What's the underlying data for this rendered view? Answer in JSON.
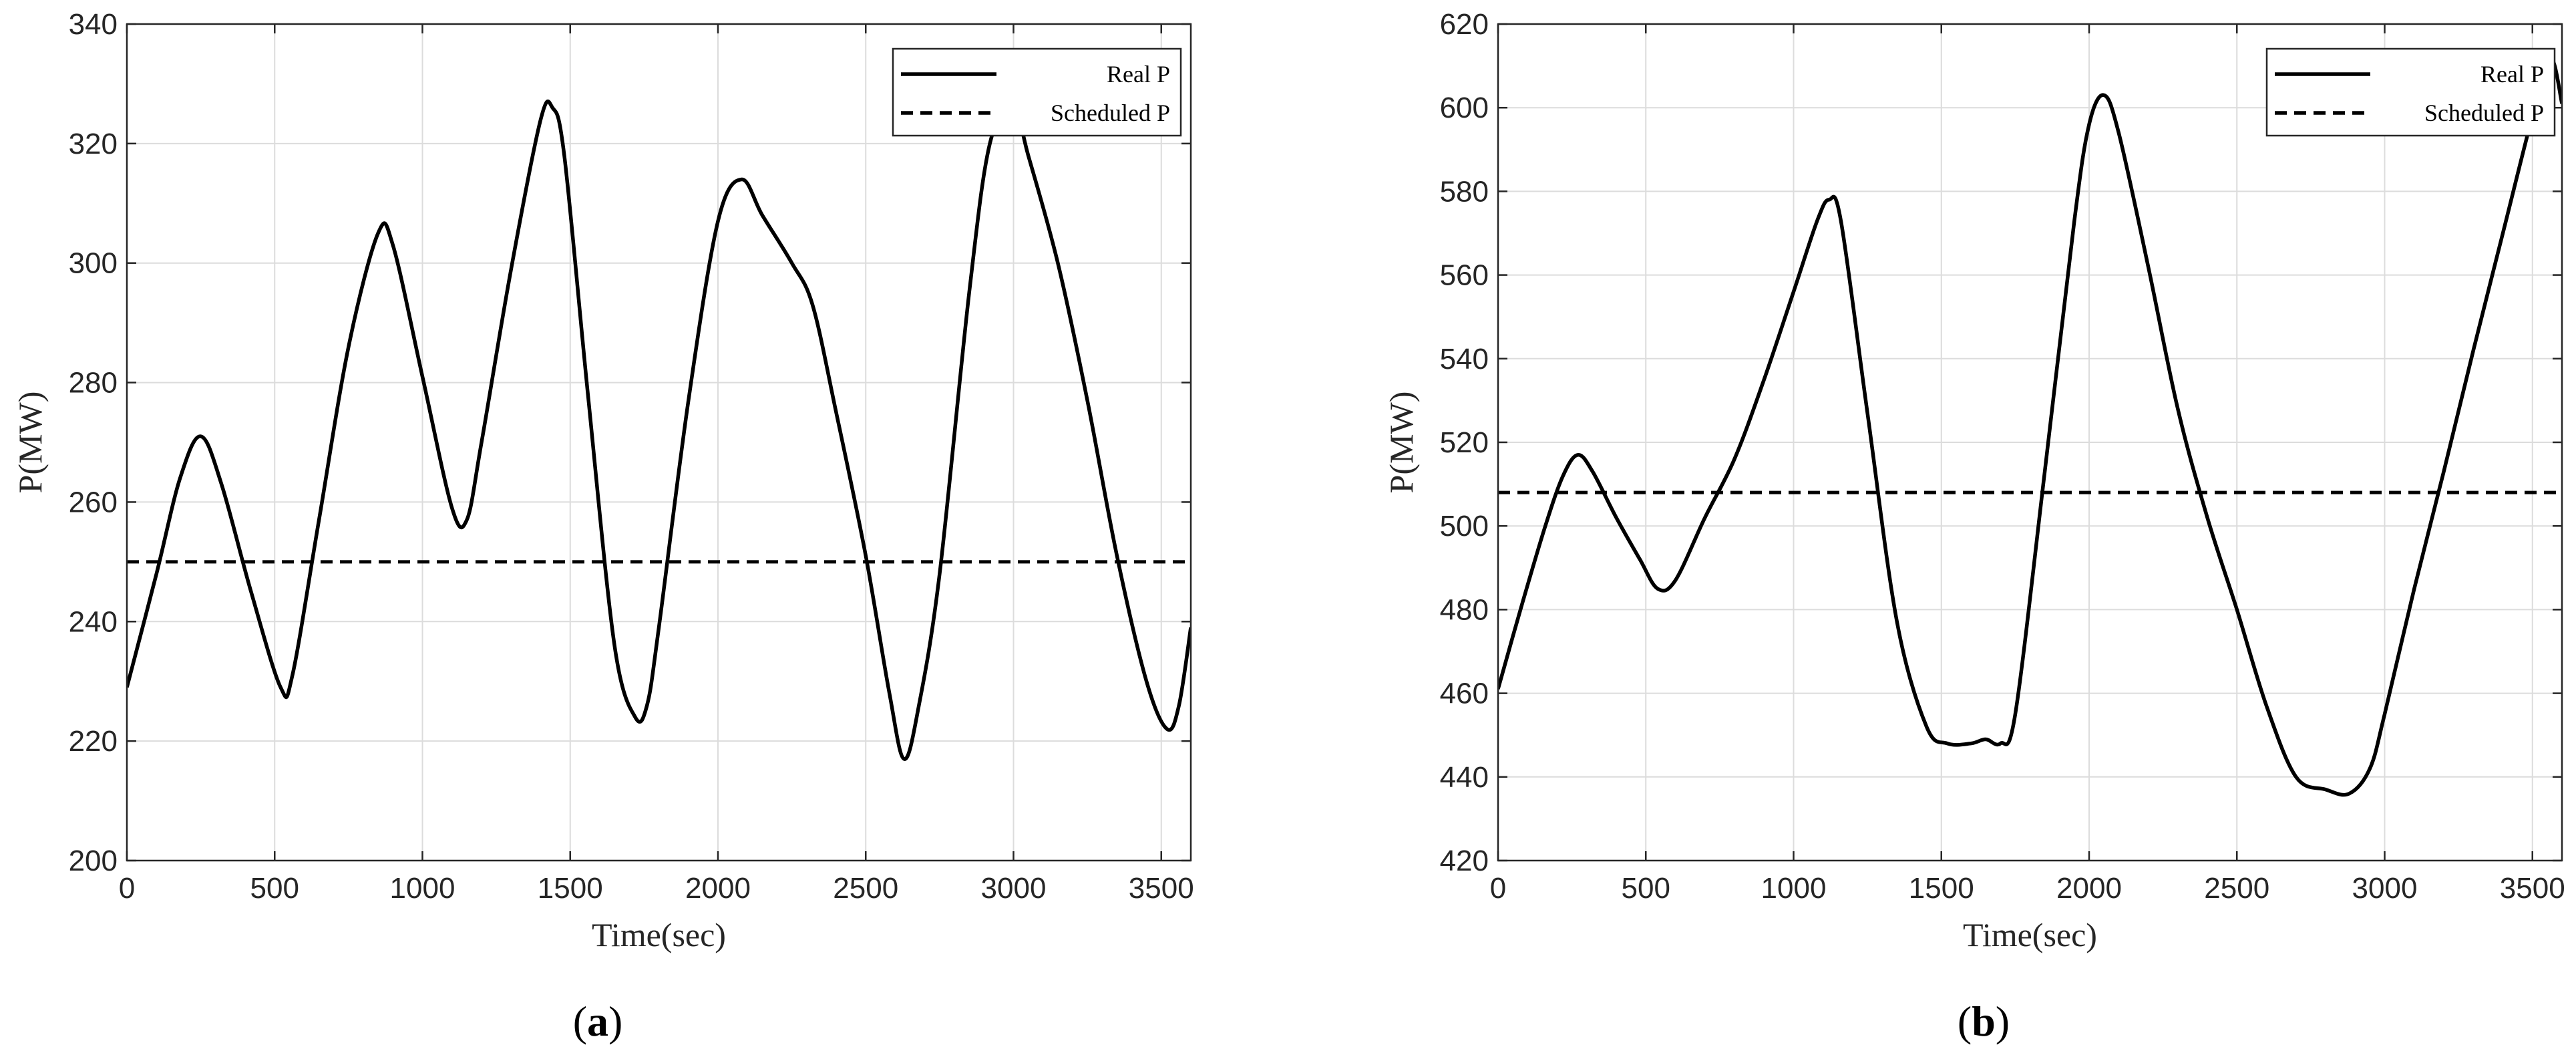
{
  "chart_data": [
    {
      "type": "line",
      "panel_label": "a",
      "xlabel": "Time(sec)",
      "ylabel": "P(MW)",
      "xlim": [
        0,
        3600
      ],
      "ylim": [
        200,
        340
      ],
      "xticks": [
        0,
        500,
        1000,
        1500,
        2000,
        2500,
        3000,
        3500
      ],
      "yticks": [
        200,
        220,
        240,
        260,
        280,
        300,
        320,
        340
      ],
      "grid": true,
      "legend_position": "top-right",
      "series": [
        {
          "name": "Real P",
          "style": "solid",
          "color": "#000000",
          "x": [
            0,
            100,
            180,
            250,
            320,
            420,
            520,
            560,
            650,
            750,
            850,
            900,
            1000,
            1100,
            1150,
            1200,
            1300,
            1400,
            1440,
            1480,
            1560,
            1650,
            1720,
            1760,
            1800,
            1900,
            2000,
            2080,
            2150,
            2250,
            2320,
            2400,
            2500,
            2580,
            2630,
            2680,
            2750,
            2850,
            2920,
            3000,
            3050,
            3150,
            3250,
            3350,
            3450,
            3520,
            3560,
            3600
          ],
          "y": [
            229,
            248,
            264,
            271,
            263,
            245,
            229,
            231,
            257,
            286,
            305,
            303,
            281,
            259,
            257,
            270,
            299,
            324,
            326,
            318,
            278,
            236,
            224,
            226,
            239,
            277,
            307,
            314,
            308,
            300,
            293,
            275,
            251,
            228,
            217,
            226,
            248,
            295,
            320,
            326,
            318,
            300,
            277,
            251,
            230,
            222,
            226,
            239
          ]
        },
        {
          "name": "Scheduled P",
          "style": "dashed",
          "color": "#000000",
          "x": [
            0,
            3600
          ],
          "y": [
            250,
            250
          ]
        }
      ]
    },
    {
      "type": "line",
      "panel_label": "b",
      "xlabel": "Time(sec)",
      "ylabel": "P(MW)",
      "xlim": [
        0,
        3600
      ],
      "ylim": [
        420,
        620
      ],
      "xticks": [
        0,
        500,
        1000,
        1500,
        2000,
        2500,
        3000,
        3500
      ],
      "yticks": [
        420,
        440,
        460,
        480,
        500,
        520,
        540,
        560,
        580,
        600,
        620
      ],
      "grid": true,
      "legend_position": "top-right",
      "series": [
        {
          "name": "Real P",
          "style": "solid",
          "color": "#000000",
          "x": [
            0,
            80,
            160,
            220,
            270,
            320,
            400,
            480,
            540,
            600,
            700,
            800,
            900,
            1000,
            1080,
            1120,
            1160,
            1250,
            1350,
            1450,
            1520,
            1600,
            1650,
            1700,
            1750,
            1850,
            1950,
            2000,
            2050,
            2100,
            2200,
            2300,
            2400,
            2500,
            2600,
            2700,
            2800,
            2880,
            2950,
            3000,
            3100,
            3200,
            3300,
            3400,
            3500,
            3560,
            3600
          ],
          "y": [
            461,
            481,
            500,
            512,
            517,
            513,
            502,
            492,
            485,
            487,
            502,
            516,
            535,
            556,
            573,
            578,
            573,
            527,
            477,
            452,
            448,
            448,
            449,
            448,
            455,
            513,
            573,
            596,
            603,
            594,
            562,
            528,
            502,
            480,
            457,
            440,
            437,
            436,
            442,
            455,
            485,
            513,
            542,
            570,
            598,
            612,
            601
          ]
        },
        {
          "name": "Scheduled P",
          "style": "dashed",
          "color": "#000000",
          "x": [
            0,
            3600
          ],
          "y": [
            508,
            508
          ]
        }
      ]
    }
  ]
}
